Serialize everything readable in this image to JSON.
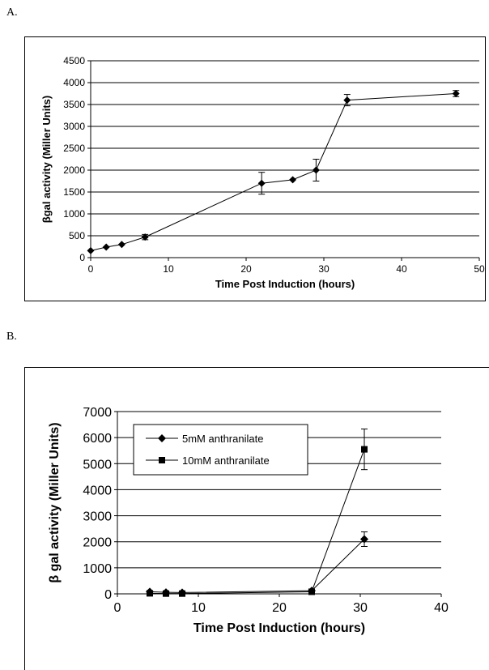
{
  "panels": {
    "a_label": "A.",
    "b_label": "B."
  },
  "chart_data": [
    {
      "type": "line",
      "title": "",
      "xlabel": "Time Post Induction (hours)",
      "ylabel": "βgal activity (Miller Units)",
      "xlim": [
        0,
        50
      ],
      "ylim": [
        0,
        4500
      ],
      "xticks": [
        0,
        10,
        20,
        30,
        40,
        50
      ],
      "yticks": [
        0,
        500,
        1000,
        1500,
        2000,
        2500,
        3000,
        3500,
        4000,
        4500
      ],
      "grid": "horizontal",
      "legend": "none",
      "series": [
        {
          "marker": "diamond",
          "x": [
            0,
            2,
            4,
            7,
            22,
            26,
            29,
            33,
            47
          ],
          "y": [
            160,
            240,
            300,
            470,
            1700,
            1780,
            2000,
            3600,
            3750
          ],
          "err": [
            0,
            0,
            0,
            60,
            250,
            0,
            250,
            130,
            70
          ]
        }
      ]
    },
    {
      "type": "line",
      "title": "",
      "xlabel": "Time Post Induction (hours)",
      "ylabel": "β gal activity (Miller Units)",
      "xlim": [
        0,
        40
      ],
      "ylim": [
        0,
        7000
      ],
      "xticks": [
        0,
        10,
        20,
        30,
        40
      ],
      "yticks": [
        0,
        1000,
        2000,
        3000,
        4000,
        5000,
        6000,
        7000
      ],
      "grid": "horizontal",
      "legend": "top-left",
      "series": [
        {
          "name": "5mM anthranilate",
          "marker": "diamond",
          "x": [
            4,
            6,
            8,
            24,
            30.5
          ],
          "y": [
            80,
            60,
            50,
            120,
            2100
          ],
          "err": [
            0,
            0,
            0,
            0,
            280
          ]
        },
        {
          "name": "10mM anthranilate",
          "marker": "square",
          "x": [
            4,
            6,
            8,
            24,
            30.5
          ],
          "y": [
            20,
            10,
            10,
            80,
            5550
          ],
          "err": [
            0,
            0,
            0,
            0,
            780
          ]
        }
      ]
    }
  ]
}
